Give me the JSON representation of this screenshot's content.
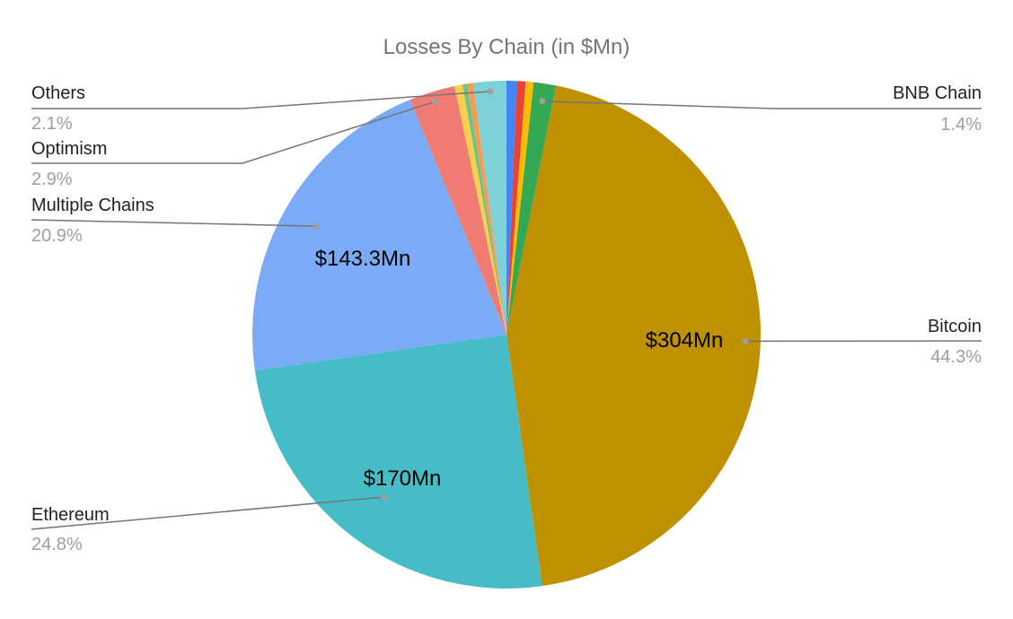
{
  "chart_data": {
    "type": "pie",
    "title": "Losses By Chain (in $Mn)",
    "slices": [
      {
        "label": "",
        "percent": 0.65,
        "color": "#4285f4"
      },
      {
        "label": "",
        "percent": 0.55,
        "color": "#ea4335"
      },
      {
        "label": "",
        "percent": 0.5,
        "color": "#fbbc04"
      },
      {
        "label": "BNB Chain",
        "percent": 1.4,
        "color": "#34a853",
        "pct_text": "1.4%"
      },
      {
        "label": "Bitcoin",
        "percent": 44.3,
        "color": "#bf9000",
        "pct_text": "44.3%",
        "value_text": "$304Mn"
      },
      {
        "label": "Ethereum",
        "percent": 24.8,
        "color": "#46bdc6",
        "pct_text": "24.8%",
        "value_text": "$170Mn"
      },
      {
        "label": "Multiple Chains",
        "percent": 20.9,
        "color": "#7baaf7",
        "pct_text": "20.9%",
        "value_text": "$143.3Mn"
      },
      {
        "label": "Optimism",
        "percent": 2.9,
        "color": "#f07b72",
        "pct_text": "2.9%"
      },
      {
        "label": "",
        "percent": 0.5,
        "color": "#fcd04f"
      },
      {
        "label": "",
        "percent": 0.3,
        "color": "#71c287"
      },
      {
        "label": "",
        "percent": 0.35,
        "color": "#ff994d"
      },
      {
        "label": "Others",
        "percent": 2.1,
        "color": "#7ed1d7",
        "pct_text": "2.1%"
      }
    ]
  }
}
